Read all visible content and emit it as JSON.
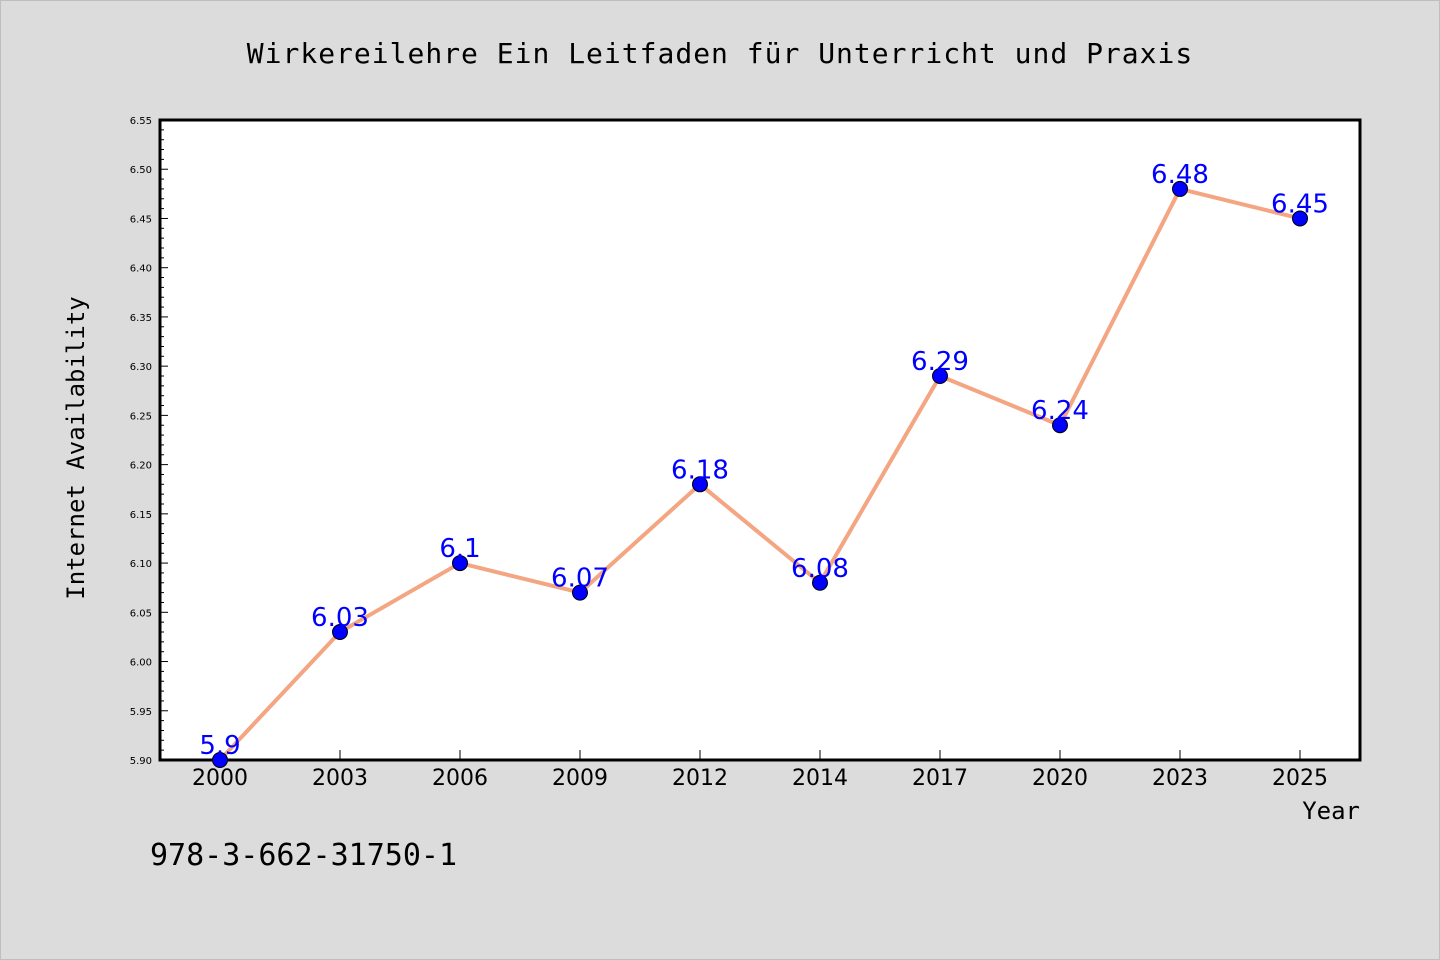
{
  "chart_data": {
    "type": "line",
    "title": "Wirkereilehre Ein Leitfaden für Unterricht und Praxis",
    "xlabel": "Year",
    "ylabel": "Internet Availability",
    "categories": [
      "2000",
      "2003",
      "2006",
      "2009",
      "2012",
      "2014",
      "2017",
      "2020",
      "2023",
      "2025"
    ],
    "series": [
      {
        "values": [
          5.9,
          6.03,
          6.1,
          6.07,
          6.18,
          6.08,
          6.29,
          6.24,
          6.48,
          6.45
        ],
        "data_labels": [
          "5.9",
          "6.03",
          "6.1",
          "6.07",
          "6.18",
          "6.08",
          "6.29",
          "6.24",
          "6.48",
          "6.45"
        ]
      }
    ],
    "ylim": [
      5.9,
      6.55
    ],
    "y_ticks": [
      "5.90",
      "5.95",
      "6.00",
      "6.05",
      "6.10",
      "6.15",
      "6.20",
      "6.25",
      "6.30",
      "6.35",
      "6.40",
      "6.45",
      "6.50",
      "6.55"
    ],
    "grid": false,
    "legend": "none",
    "colors": {
      "line": "#f4a582",
      "marker": "#0000ff",
      "data_label": "#0000ff",
      "background": "#dcdcdc",
      "plot_background": "#ffffff"
    }
  },
  "footer": {
    "isbn": "978-3-662-31750-1"
  }
}
